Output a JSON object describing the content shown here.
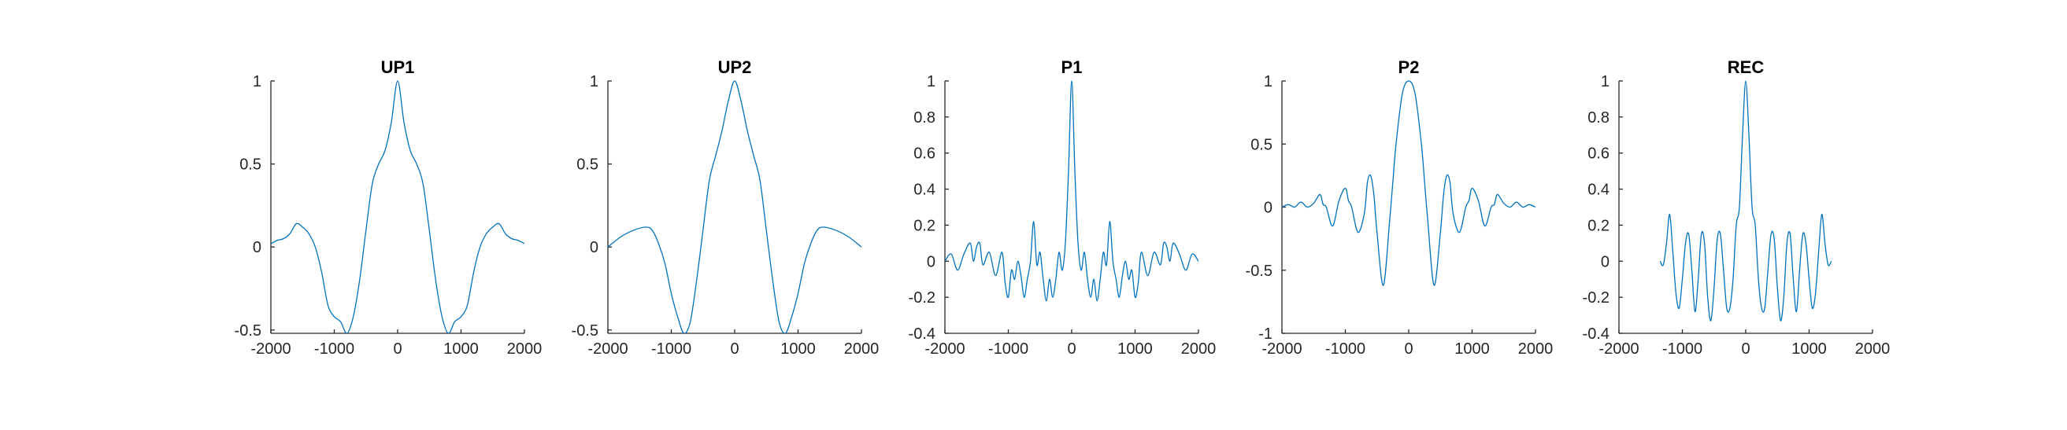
{
  "figure": {
    "background": "#ffffff",
    "axis_color": "#262626",
    "line_color": "#0072BD"
  },
  "chart_data": [
    {
      "type": "line",
      "title": "UP1",
      "xlabel": "",
      "ylabel": "",
      "xlim": [
        -2000,
        2000
      ],
      "ylim": [
        -0.52,
        1.0
      ],
      "xticks": [
        -2000,
        -1000,
        0,
        1000,
        2000
      ],
      "xtick_labels": [
        "-2000",
        "-1000",
        "0",
        "1000",
        "2000"
      ],
      "yticks": [
        -0.5,
        0,
        0.5,
        1
      ],
      "ytick_labels": [
        "-0.5",
        "0",
        "0.5",
        "1"
      ],
      "grid": false,
      "series": [
        {
          "x": [
            -2000,
            -1900,
            -1800,
            -1700,
            -1600,
            -1500,
            -1400,
            -1300,
            -1200,
            -1100,
            -1000,
            -900,
            -800,
            -700,
            -600,
            -500,
            -400,
            -300,
            -200,
            -100,
            0,
            100,
            200,
            300,
            400,
            500,
            600,
            700,
            800,
            900,
            1000,
            1100,
            1200,
            1300,
            1400,
            1500,
            1600,
            1700,
            1800,
            1900,
            2000
          ],
          "y": [
            0.02,
            0.04,
            0.05,
            0.08,
            0.14,
            0.12,
            0.08,
            0.0,
            -0.15,
            -0.35,
            -0.42,
            -0.45,
            -0.52,
            -0.42,
            -0.2,
            0.1,
            0.38,
            0.5,
            0.58,
            0.75,
            1.0,
            0.75,
            0.58,
            0.5,
            0.38,
            0.1,
            -0.2,
            -0.42,
            -0.52,
            -0.45,
            -0.42,
            -0.35,
            -0.15,
            0.0,
            0.08,
            0.12,
            0.14,
            0.08,
            0.05,
            0.04,
            0.02
          ]
        }
      ]
    },
    {
      "type": "line",
      "title": "UP2",
      "xlabel": "",
      "ylabel": "",
      "xlim": [
        -2000,
        2000
      ],
      "ylim": [
        -0.52,
        1.0
      ],
      "xticks": [
        -2000,
        -1000,
        0,
        1000,
        2000
      ],
      "xtick_labels": [
        "-2000",
        "-1000",
        "0",
        "1000",
        "2000"
      ],
      "yticks": [
        -0.5,
        0,
        0.5,
        1
      ],
      "ytick_labels": [
        "-0.5",
        "0",
        "0.5",
        "1"
      ],
      "grid": false,
      "series": [
        {
          "x": [
            -2000,
            -1800,
            -1600,
            -1400,
            -1300,
            -1200,
            -1100,
            -1000,
            -900,
            -800,
            -700,
            -600,
            -500,
            -400,
            -300,
            -200,
            -100,
            0,
            100,
            200,
            300,
            400,
            500,
            600,
            700,
            800,
            900,
            1000,
            1100,
            1200,
            1300,
            1400,
            1600,
            1800,
            2000
          ],
          "y": [
            0.0,
            0.06,
            0.1,
            0.12,
            0.1,
            0.02,
            -0.1,
            -0.28,
            -0.42,
            -0.52,
            -0.45,
            -0.2,
            0.1,
            0.4,
            0.55,
            0.7,
            0.88,
            1.0,
            0.88,
            0.7,
            0.55,
            0.4,
            0.1,
            -0.2,
            -0.45,
            -0.52,
            -0.42,
            -0.28,
            -0.1,
            0.02,
            0.1,
            0.12,
            0.1,
            0.06,
            0.0
          ]
        }
      ]
    },
    {
      "type": "line",
      "title": "P1",
      "xlabel": "",
      "ylabel": "",
      "xlim": [
        -2000,
        2000
      ],
      "ylim": [
        -0.4,
        1.0
      ],
      "xticks": [
        -2000,
        -1000,
        0,
        1000,
        2000
      ],
      "xtick_labels": [
        "-2000",
        "-1000",
        "0",
        "1000",
        "2000"
      ],
      "yticks": [
        -0.4,
        -0.2,
        0,
        0.2,
        0.4,
        0.6,
        0.8,
        1
      ],
      "ytick_labels": [
        "-0.4",
        "-0.2",
        "0",
        "0.2",
        "0.4",
        "0.6",
        "0.8",
        "1"
      ],
      "grid": false,
      "series": [
        {
          "x": [
            -2000,
            -1900,
            -1800,
            -1700,
            -1600,
            -1550,
            -1500,
            -1450,
            -1400,
            -1300,
            -1200,
            -1100,
            -1050,
            -1000,
            -950,
            -900,
            -850,
            -800,
            -750,
            -700,
            -650,
            -600,
            -550,
            -500,
            -450,
            -400,
            -350,
            -300,
            -250,
            -200,
            -150,
            -100,
            -50,
            0,
            50,
            100,
            150,
            200,
            250,
            300,
            350,
            400,
            450,
            500,
            550,
            600,
            650,
            700,
            750,
            800,
            850,
            900,
            950,
            1000,
            1050,
            1100,
            1200,
            1300,
            1400,
            1450,
            1500,
            1550,
            1600,
            1700,
            1800,
            1900,
            2000
          ],
          "y": [
            0.0,
            0.04,
            -0.05,
            0.04,
            0.1,
            0.0,
            0.08,
            0.1,
            -0.02,
            0.05,
            -0.08,
            0.05,
            -0.12,
            -0.2,
            -0.05,
            -0.1,
            0.0,
            -0.08,
            -0.2,
            -0.1,
            0.0,
            0.22,
            -0.02,
            0.05,
            -0.1,
            -0.22,
            -0.1,
            -0.2,
            -0.1,
            0.05,
            -0.05,
            0.1,
            0.5,
            1.0,
            0.5,
            0.1,
            -0.05,
            0.05,
            -0.1,
            -0.2,
            -0.1,
            -0.22,
            -0.1,
            0.05,
            -0.02,
            0.22,
            0.0,
            -0.1,
            -0.2,
            -0.08,
            0.0,
            -0.1,
            -0.05,
            -0.2,
            -0.12,
            0.05,
            -0.08,
            0.05,
            -0.02,
            0.1,
            0.08,
            0.0,
            0.1,
            0.04,
            -0.05,
            0.04,
            0.0
          ]
        }
      ]
    },
    {
      "type": "line",
      "title": "P2",
      "xlabel": "",
      "ylabel": "",
      "xlim": [
        -2000,
        2000
      ],
      "ylim": [
        -1.0,
        1.0
      ],
      "xticks": [
        -2000,
        -1000,
        0,
        1000,
        2000
      ],
      "xtick_labels": [
        "-2000",
        "-1000",
        "0",
        "1000",
        "2000"
      ],
      "yticks": [
        -1,
        -0.5,
        0,
        0.5,
        1
      ],
      "ytick_labels": [
        "-1",
        "-0.5",
        "0",
        "0.5",
        "1"
      ],
      "grid": false,
      "series": [
        {
          "x": [
            -2000,
            -1900,
            -1800,
            -1700,
            -1600,
            -1500,
            -1400,
            -1350,
            -1300,
            -1200,
            -1100,
            -1000,
            -950,
            -900,
            -800,
            -700,
            -650,
            -600,
            -550,
            -500,
            -400,
            -300,
            -250,
            -200,
            -100,
            0,
            100,
            200,
            250,
            300,
            400,
            500,
            550,
            600,
            650,
            700,
            800,
            900,
            950,
            1000,
            1100,
            1200,
            1300,
            1350,
            1400,
            1500,
            1600,
            1700,
            1800,
            1900,
            2000
          ],
          "y": [
            0.0,
            0.02,
            0.0,
            0.04,
            0.0,
            0.03,
            0.1,
            0.02,
            0.0,
            -0.15,
            0.05,
            0.15,
            0.05,
            0.0,
            -0.2,
            -0.05,
            0.2,
            0.25,
            0.1,
            -0.2,
            -0.62,
            -0.1,
            0.2,
            0.5,
            0.9,
            1.0,
            0.9,
            0.5,
            0.2,
            -0.1,
            -0.62,
            -0.2,
            0.1,
            0.25,
            0.2,
            -0.05,
            -0.2,
            0.0,
            0.05,
            0.15,
            0.05,
            -0.15,
            0.0,
            0.02,
            0.1,
            0.03,
            0.0,
            0.04,
            0.0,
            0.02,
            0.0
          ]
        }
      ]
    },
    {
      "type": "line",
      "title": "REC",
      "xlabel": "",
      "ylabel": "",
      "xlim": [
        -2000,
        2000
      ],
      "ylim": [
        -0.4,
        1.0
      ],
      "xticks": [
        -2000,
        -1000,
        0,
        1000,
        2000
      ],
      "xtick_labels": [
        "-2000",
        "-1000",
        "0",
        "1000",
        "2000"
      ],
      "yticks": [
        -0.4,
        -0.2,
        0,
        0.2,
        0.4,
        0.6,
        0.8,
        1
      ],
      "ytick_labels": [
        "-0.4",
        "-0.2",
        "0",
        "0.2",
        "0.4",
        "0.6",
        "0.8",
        "1"
      ],
      "grid": false,
      "series": [
        {
          "x": [
            -1350,
            -1300,
            -1250,
            -1200,
            -1150,
            -1100,
            -1050,
            -1000,
            -950,
            -900,
            -850,
            -800,
            -750,
            -700,
            -650,
            -600,
            -550,
            -500,
            -450,
            -400,
            -350,
            -300,
            -250,
            -200,
            -150,
            -100,
            -50,
            0,
            50,
            100,
            150,
            200,
            250,
            300,
            350,
            400,
            450,
            500,
            550,
            600,
            650,
            700,
            750,
            800,
            850,
            900,
            950,
            1000,
            1050,
            1100,
            1150,
            1200,
            1250,
            1300,
            1350
          ],
          "y": [
            0.0,
            -0.02,
            0.1,
            0.26,
            0.05,
            -0.18,
            -0.26,
            -0.1,
            0.1,
            0.15,
            -0.05,
            -0.28,
            -0.1,
            0.15,
            0.1,
            -0.2,
            -0.33,
            -0.15,
            0.12,
            0.15,
            -0.05,
            -0.26,
            -0.26,
            -0.1,
            0.2,
            0.3,
            0.7,
            1.0,
            0.7,
            0.3,
            0.2,
            -0.1,
            -0.26,
            -0.26,
            -0.05,
            0.15,
            0.12,
            -0.15,
            -0.33,
            -0.2,
            0.1,
            0.15,
            -0.1,
            -0.28,
            -0.05,
            0.15,
            0.1,
            -0.1,
            -0.26,
            -0.18,
            0.05,
            0.26,
            0.1,
            -0.02,
            0.0
          ]
        }
      ]
    }
  ]
}
